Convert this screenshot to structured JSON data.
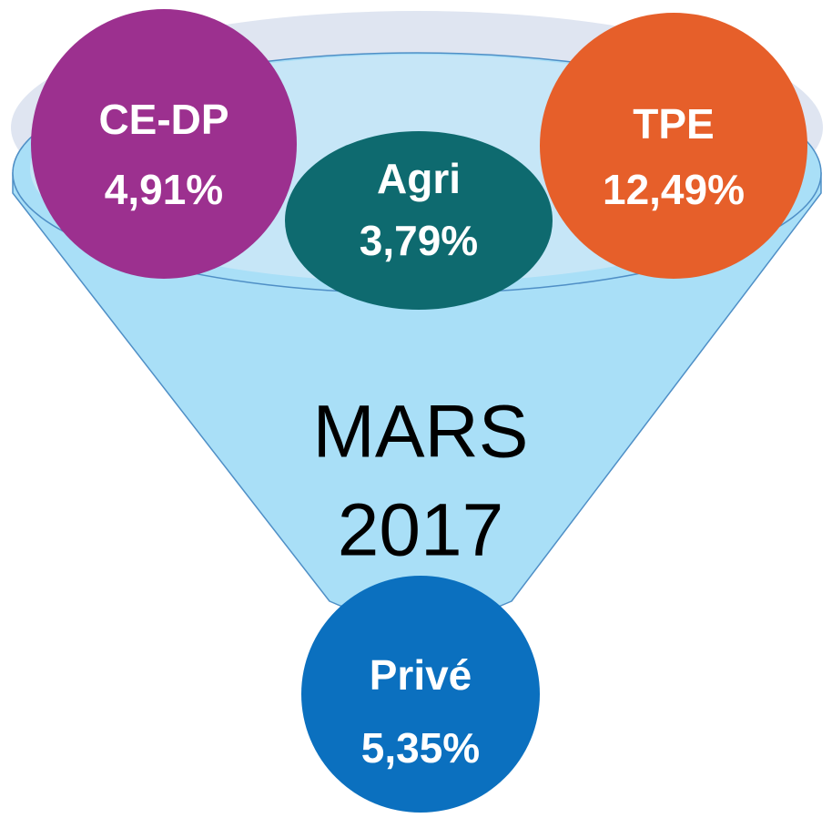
{
  "title": {
    "line1": "MARS",
    "line2": "2017"
  },
  "nodes": [
    {
      "label": "CE-DP",
      "value": "4,91%"
    },
    {
      "label": "Agri",
      "value": "3,79%"
    },
    {
      "label": "TPE",
      "value": "12,49%"
    },
    {
      "label": "Privé",
      "value": "5,35%"
    }
  ]
}
